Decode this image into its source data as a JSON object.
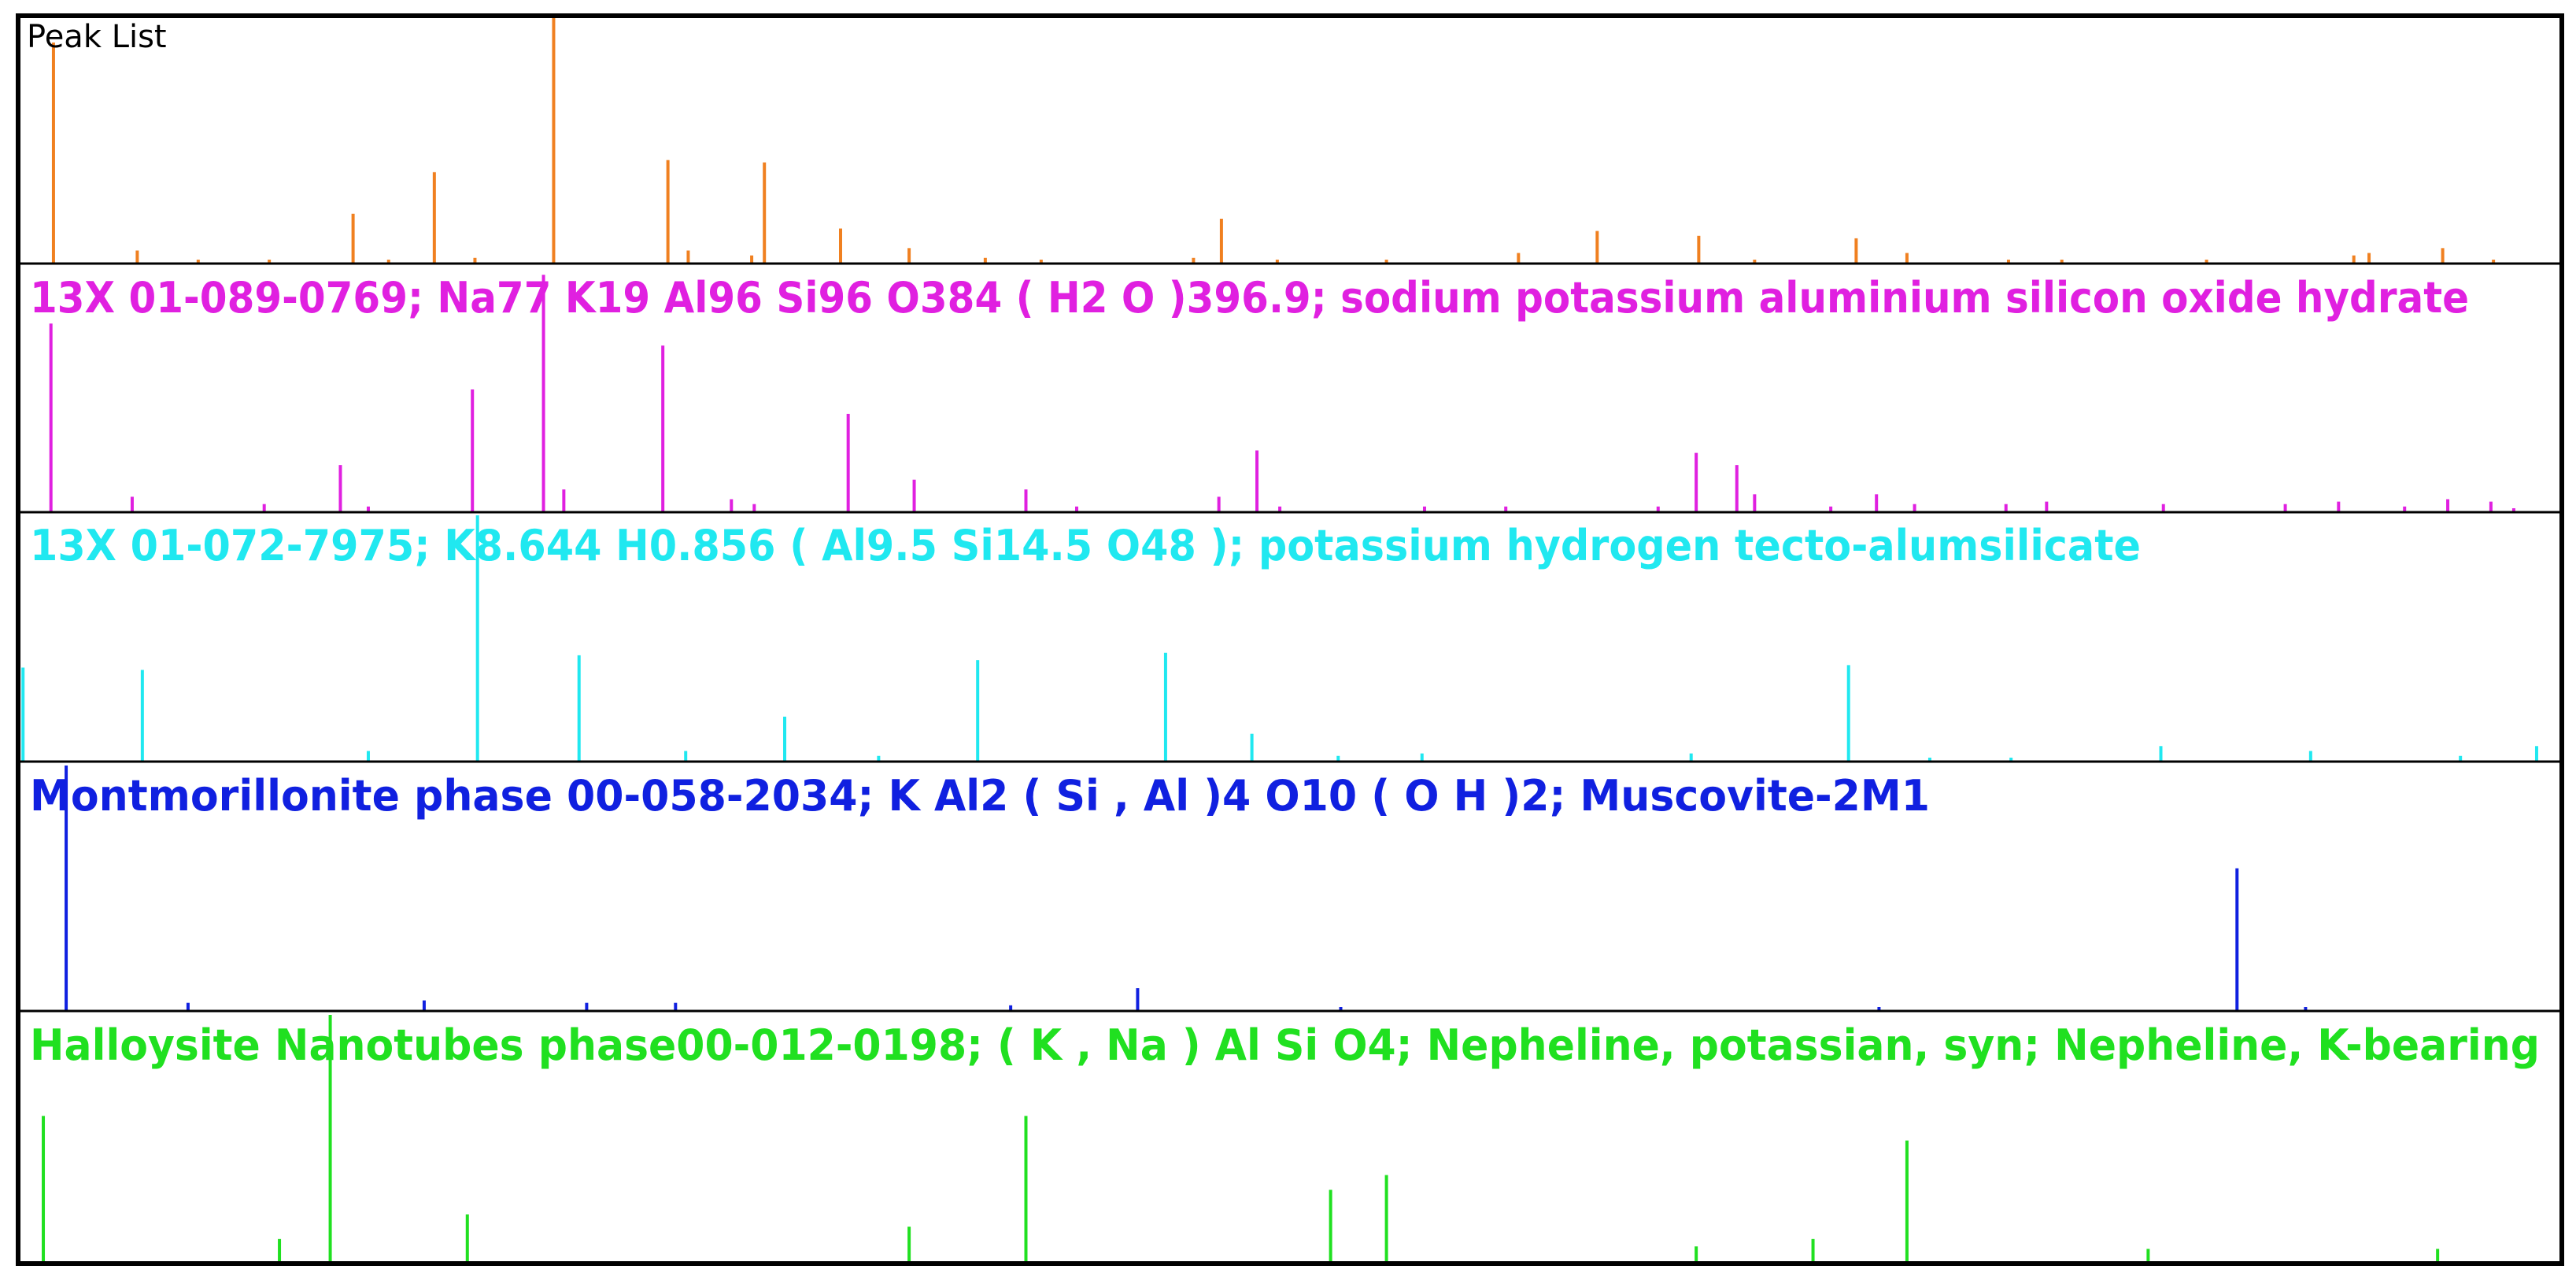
{
  "chart_data": {
    "type": "bar",
    "xlim": [
      0,
      100
    ],
    "grid": false,
    "legend": "none",
    "panels": [
      {
        "title": "Peak List",
        "color": "#f08020",
        "title_style": "plain-black",
        "x": [
          1.3,
          4.6,
          7.0,
          9.8,
          13.1,
          14.5,
          16.3,
          17.9,
          21.0,
          25.5,
          26.3,
          28.8,
          29.3,
          32.3,
          35.0,
          38.0,
          40.2,
          46.2,
          47.3,
          49.5,
          53.8,
          59.0,
          62.1,
          66.1,
          68.3,
          72.3,
          74.3,
          78.3,
          80.4,
          86.1,
          91.9,
          92.5,
          95.4,
          97.4
        ],
        "values": [
          90,
          5,
          1,
          1,
          20,
          1,
          37,
          2,
          100,
          42,
          5,
          3,
          41,
          14,
          6,
          2,
          1,
          2,
          18,
          1,
          1,
          4,
          13,
          11,
          1,
          10,
          4,
          1,
          1,
          1,
          3,
          4,
          6,
          1
        ]
      },
      {
        "title": "13X 01-089-0769; Na77 K19 Al96 Si96 O384 ( H2 O )396.9; sodium potassium aluminium silicon oxide hydrate",
        "color": "#e020e0",
        "x": [
          1.2,
          4.4,
          9.6,
          12.6,
          13.7,
          17.8,
          20.6,
          21.4,
          25.3,
          28.0,
          28.9,
          32.6,
          35.2,
          39.6,
          41.6,
          47.2,
          48.7,
          49.6,
          55.3,
          58.5,
          64.5,
          66.0,
          67.6,
          68.3,
          71.3,
          73.1,
          74.6,
          78.2,
          79.8,
          84.4,
          89.2,
          91.3,
          93.9,
          95.6,
          97.3,
          98.2
        ],
        "values": [
          77,
          6,
          3,
          19,
          2,
          50,
          97,
          9,
          68,
          5,
          3,
          40,
          13,
          9,
          2,
          6,
          25,
          2,
          2,
          2,
          2,
          24,
          19,
          7,
          2,
          7,
          3,
          3,
          4,
          3,
          3,
          4,
          2,
          5,
          4,
          1
        ]
      },
      {
        "title": "13X 01-072-7975; K8.644 H0.856 ( Al9.5 Si14.5 O48 ); potassium hydrogen tecto-alumsilicate",
        "color": "#20e8f0",
        "x": [
          0.1,
          4.8,
          13.7,
          18.0,
          22.0,
          26.2,
          30.1,
          33.8,
          37.7,
          45.1,
          48.5,
          51.9,
          55.2,
          65.8,
          72.0,
          75.2,
          78.4,
          84.3,
          90.2,
          96.1,
          99.1
        ],
        "values": [
          38,
          37,
          4,
          100,
          43,
          4,
          18,
          2,
          41,
          44,
          11,
          2,
          3,
          3,
          39,
          1,
          1,
          6,
          4,
          2,
          6
        ]
      },
      {
        "title": "Montmorillonite phase 00-058-2034; K Al2 ( Si , Al )4 O10 ( O H )2; Muscovite-2M1",
        "color": "#1020e0",
        "x": [
          1.8,
          6.6,
          15.9,
          22.3,
          25.8,
          39.0,
          44.0,
          52.0,
          73.2,
          87.3,
          90.0
        ],
        "values": [
          100,
          3,
          4,
          3,
          3,
          2,
          9,
          1,
          1,
          58,
          1
        ]
      },
      {
        "title": "Halloysite Nanotubes phase00-012-0198; ( K , Na ) Al Si O4; Nepheline, potassian, syn; Nepheline, K-bearing",
        "color": "#20e020",
        "x": [
          0.9,
          10.2,
          12.2,
          17.6,
          35.0,
          39.6,
          51.6,
          53.8,
          66.0,
          70.6,
          74.3,
          83.8,
          95.2
        ],
        "values": [
          59,
          9,
          100,
          19,
          14,
          59,
          29,
          35,
          6,
          9,
          49,
          5,
          5
        ]
      }
    ]
  }
}
